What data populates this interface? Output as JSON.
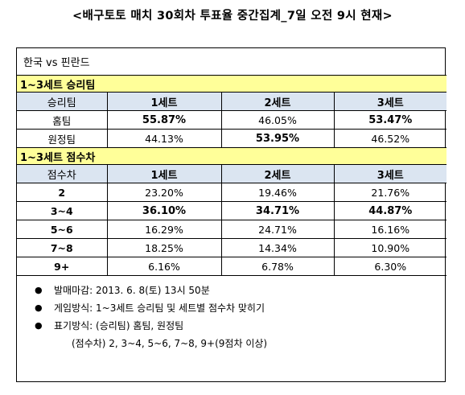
{
  "title": "<배구토토 매치 30회차 투표율 중간집계_7일 오전 9시 현재>",
  "match": "한국 vs 핀란드",
  "section1": {
    "title": "1~3세트 승리팀",
    "header": [
      "승리팀",
      "1세트",
      "2세트",
      "3세트"
    ],
    "rows": [
      {
        "label": "홈팀",
        "values": [
          "55.87%",
          "46.05%",
          "53.47%"
        ],
        "bold": [
          true,
          false,
          true
        ]
      },
      {
        "label": "원정팀",
        "values": [
          "44.13%",
          "53.95%",
          "46.52%"
        ],
        "bold": [
          false,
          true,
          false
        ]
      }
    ]
  },
  "section2": {
    "title": "1~3세트 점수차",
    "header": [
      "점수차",
      "1세트",
      "2세트",
      "3세트"
    ],
    "rows": [
      {
        "label": "2",
        "values": [
          "23.20%",
          "19.46%",
          "21.76%"
        ],
        "bold": [
          false,
          false,
          false
        ]
      },
      {
        "label": "3~4",
        "values": [
          "36.10%",
          "34.71%",
          "44.87%"
        ],
        "bold": [
          true,
          true,
          true
        ]
      },
      {
        "label": "5~6",
        "values": [
          "16.29%",
          "24.71%",
          "16.16%"
        ],
        "bold": [
          false,
          false,
          false
        ]
      },
      {
        "label": "7~8",
        "values": [
          "18.25%",
          "14.34%",
          "10.90%"
        ],
        "bold": [
          false,
          false,
          false
        ]
      },
      {
        "label": "9+",
        "values": [
          "6.16%",
          "6.78%",
          "6.30%"
        ],
        "bold": [
          false,
          false,
          false
        ]
      }
    ]
  },
  "notes": {
    "bullet_icon": "black-circle",
    "items": [
      "발매마감: 2013. 6. 8(토) 13시 50분",
      "게임방식: 1~3세트 승리팀 및 세트별 점수차 맞히기",
      "표기방식: (승리팀) 홈팀, 원정팀"
    ],
    "continuation": "(점수차) 2, 3~4, 5~6, 7~8, 9+(9점차 이상)"
  }
}
